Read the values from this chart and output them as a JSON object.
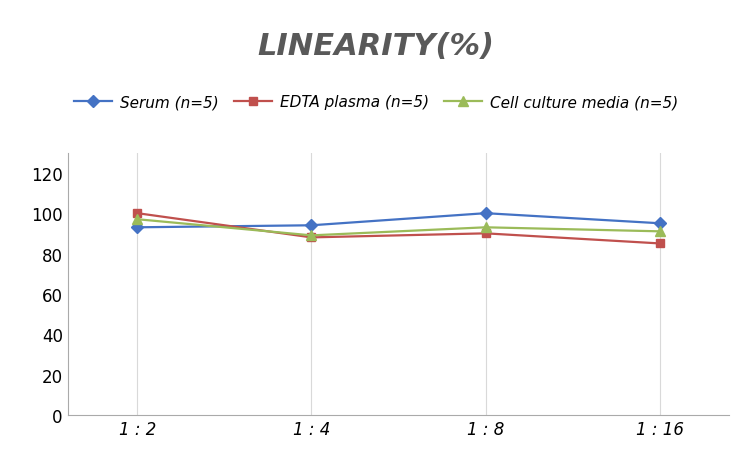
{
  "title": "LINEARITY(%)",
  "x_labels": [
    "1 : 2",
    "1 : 4",
    "1 : 8",
    "1 : 16"
  ],
  "x_positions": [
    0,
    1,
    2,
    3
  ],
  "series": [
    {
      "label": "Serum (n=5)",
      "values": [
        93,
        94,
        100,
        95
      ],
      "color": "#4472C4",
      "marker": "D",
      "markersize": 6
    },
    {
      "label": "EDTA plasma (n=5)",
      "values": [
        100,
        88,
        90,
        85
      ],
      "color": "#C0504D",
      "marker": "s",
      "markersize": 6
    },
    {
      "label": "Cell culture media (n=5)",
      "values": [
        97,
        89,
        93,
        91
      ],
      "color": "#9BBB59",
      "marker": "^",
      "markersize": 7
    }
  ],
  "ylim": [
    0,
    130
  ],
  "yticks": [
    0,
    20,
    40,
    60,
    80,
    100,
    120
  ],
  "title_fontsize": 22,
  "legend_fontsize": 11,
  "tick_fontsize": 12,
  "background_color": "#FFFFFF",
  "grid_color": "#D9D9D9",
  "linewidth": 1.6,
  "title_color": "#595959"
}
